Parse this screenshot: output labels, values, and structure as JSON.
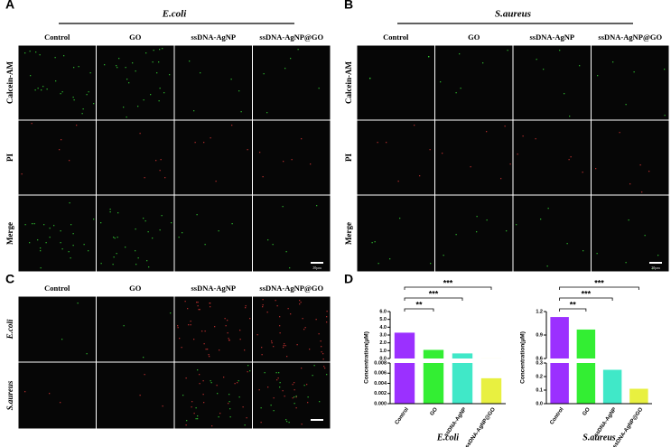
{
  "panels": {
    "A": {
      "label": "A",
      "organism": "E.coli",
      "columns": [
        "Control",
        "GO",
        "ssDNA-AgNP",
        "ssDNA-AgNP@GO"
      ],
      "rows": [
        "Calcein-AM",
        "PI",
        "Merge"
      ],
      "scale_bar": "20μm"
    },
    "B": {
      "label": "B",
      "organism": "S.aureus",
      "columns": [
        "Control",
        "GO",
        "ssDNA-AgNP",
        "ssDNA-AgNP@GO"
      ],
      "rows": [
        "Calcein-AM",
        "PI",
        "Merge"
      ],
      "scale_bar": "20μm"
    },
    "C": {
      "label": "C",
      "columns": [
        "Control",
        "GO",
        "ssDNA-AgNP",
        "ssDNA-AgNP@GO"
      ],
      "rows": [
        "E.coli",
        "S.aureus"
      ]
    },
    "D": {
      "label": "D"
    }
  },
  "chart_data": [
    {
      "type": "bar",
      "title": "E.coli",
      "y_label": "Concentration(μM)",
      "categories": [
        "Control",
        "GO",
        "ssDNA-AgNP",
        "ssDNA-AgNP@GO"
      ],
      "values": [
        3.3,
        1.1,
        0.65,
        0.005
      ],
      "colors": [
        "#9b30ff",
        "#33ee33",
        "#40e8c8",
        "#e8f040"
      ],
      "segments": [
        {
          "ylim": [
            0,
            6
          ],
          "yticks": [
            {
              "value": 0,
              "label": "0.0"
            },
            {
              "value": 1,
              "label": "1.0"
            },
            {
              "value": 2,
              "label": "2.0"
            },
            {
              "value": 3,
              "label": "3.0"
            },
            {
              "value": 4,
              "label": "4.0"
            },
            {
              "value": 5,
              "label": "5.0"
            },
            {
              "value": 6,
              "label": "6.0"
            }
          ]
        },
        {
          "ylim": [
            0,
            0.008
          ],
          "yticks": [
            {
              "value": 0,
              "label": "0.000"
            },
            0.002,
            0.004,
            0.006,
            0.008
          ]
        }
      ],
      "annotations": [
        "**",
        "***",
        "***"
      ]
    },
    {
      "type": "bar",
      "title": "S.aureus",
      "y_label": "Concentration(μM)",
      "categories": [
        "Control",
        "GO",
        "ssDNA-AgNP",
        "ssDNA-AgNP@GO"
      ],
      "values": [
        1.13,
        0.97,
        0.25,
        0.11
      ],
      "colors": [
        "#9b30ff",
        "#33ee33",
        "#40e8c8",
        "#e8f040"
      ],
      "segments": [
        {
          "ylim": [
            0.6,
            1.2
          ],
          "yticks": [
            0.6,
            0.9,
            1.2
          ]
        },
        {
          "ylim": [
            0,
            0.3
          ],
          "yticks": [
            {
              "value": 0,
              "label": "0.0"
            },
            0.1,
            0.2,
            0.3
          ]
        }
      ],
      "annotations": [
        "**",
        "***",
        "***"
      ]
    }
  ]
}
